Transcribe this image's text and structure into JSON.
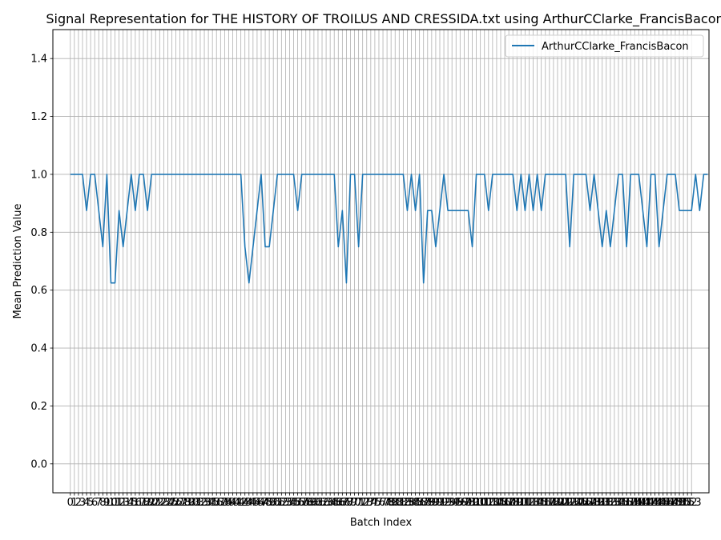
{
  "chart_data": {
    "type": "line",
    "title": "Signal Representation for THE HISTORY OF TROILUS AND CRESSIDA.txt using ArthurCClarke_FrancisBacon",
    "xlabel": "Batch Index",
    "ylabel": "Mean Prediction Value",
    "xlim": [
      -4.3,
      157.3
    ],
    "ylim": [
      -0.1,
      1.5
    ],
    "y_ticks": [
      0.0,
      0.2,
      0.4,
      0.6,
      0.8,
      1.0,
      1.2,
      1.4
    ],
    "y_tick_labels": [
      "0.0",
      "0.2",
      "0.4",
      "0.6",
      "0.8",
      "1.0",
      "1.2",
      "1.4"
    ],
    "x_tick_step": 1,
    "x_tick_range": [
      0,
      153
    ],
    "grid": true,
    "legend_position": "top-right",
    "colors": {
      "series": "#1f77b4",
      "grid": "#b0b0b0"
    },
    "series": [
      {
        "name": "ArthurCClarke_FrancisBacon",
        "values": [
          1.0,
          1.0,
          1.0,
          1.0,
          0.875,
          1.0,
          1.0,
          0.875,
          0.75,
          1.0,
          0.625,
          0.625,
          0.875,
          0.75,
          0.875,
          1.0,
          0.875,
          1.0,
          1.0,
          0.875,
          1.0,
          1.0,
          1.0,
          1.0,
          1.0,
          1.0,
          1.0,
          1.0,
          1.0,
          1.0,
          1.0,
          1.0,
          1.0,
          1.0,
          1.0,
          1.0,
          1.0,
          1.0,
          1.0,
          1.0,
          1.0,
          1.0,
          1.0,
          0.75,
          0.625,
          0.75,
          0.875,
          1.0,
          0.75,
          0.75,
          0.875,
          1.0,
          1.0,
          1.0,
          1.0,
          1.0,
          0.875,
          1.0,
          1.0,
          1.0,
          1.0,
          1.0,
          1.0,
          1.0,
          1.0,
          1.0,
          0.75,
          0.875,
          0.625,
          1.0,
          1.0,
          0.75,
          1.0,
          1.0,
          1.0,
          1.0,
          1.0,
          1.0,
          1.0,
          1.0,
          1.0,
          1.0,
          1.0,
          0.875,
          1.0,
          0.875,
          1.0,
          0.625,
          0.875,
          0.875,
          0.75,
          0.875,
          1.0,
          0.875,
          0.875,
          0.875,
          0.875,
          0.875,
          0.875,
          0.75,
          1.0,
          1.0,
          1.0,
          0.875,
          1.0,
          1.0,
          1.0,
          1.0,
          1.0,
          1.0,
          0.875,
          1.0,
          0.875,
          1.0,
          0.875,
          1.0,
          0.875,
          1.0,
          1.0,
          1.0,
          1.0,
          1.0,
          1.0,
          0.75,
          1.0,
          1.0,
          1.0,
          1.0,
          0.875,
          1.0,
          0.875,
          0.75,
          0.875,
          0.75,
          0.875,
          1.0,
          1.0,
          0.75,
          1.0,
          1.0,
          1.0,
          0.875,
          0.75,
          1.0,
          1.0,
          0.75,
          0.875,
          1.0,
          1.0,
          1.0,
          0.875,
          0.875,
          0.875,
          0.875,
          1.0,
          0.875,
          1.0,
          1.0
        ]
      }
    ]
  }
}
